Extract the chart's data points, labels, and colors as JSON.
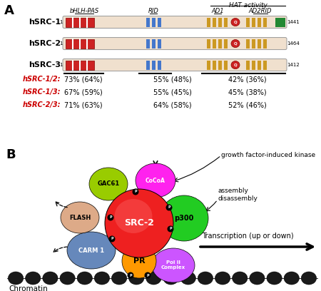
{
  "panel_A": {
    "proteins": [
      "hSRC-1",
      "hSRC-2",
      "hSRC-3"
    ],
    "lengths": [
      1441,
      1464,
      1412
    ],
    "bar_color": "#F0E0CE",
    "bar_edge": "#999999",
    "bhlh_color": "#CC2222",
    "rid_color": "#4477CC",
    "ad_color": "#CC9922",
    "q_color": "#CC2222",
    "green_color": "#228833",
    "comparison_labels": [
      "hSRC-1/2:",
      "hSRC-1/3:",
      "hSRC-2/3:"
    ],
    "comparison_data": [
      [
        "73% (64%)",
        "55% (48%)",
        "42% (36%)"
      ],
      [
        "67% (59%)",
        "55% (45%)",
        "45% (38%)"
      ],
      [
        "71% (63%)",
        "64% (58%)",
        "52% (46%)"
      ]
    ]
  },
  "panel_B": {
    "src2_color": "#EE2020",
    "p300_color": "#22CC22",
    "cocoa_color": "#FF22EE",
    "gac61_color": "#99CC00",
    "flash_color": "#DDAA88",
    "carm1_color": "#6688BB",
    "pr_color": "#FF9900",
    "polii_color": "#CC55FF"
  },
  "background_color": "#FFFFFF"
}
